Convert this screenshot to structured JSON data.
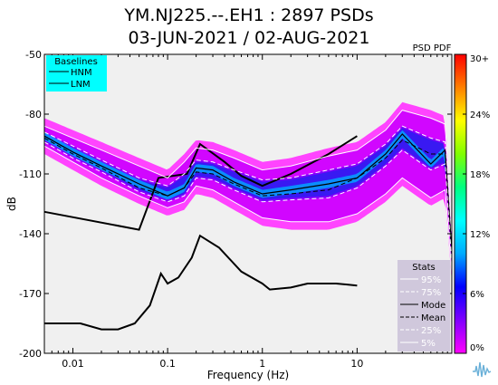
{
  "header": {
    "title_line1": "YM.NJ225.--.EH1 : 2897 PSDs",
    "title_line2": "03-JUN-2021 / 02-AUG-2021"
  },
  "chart_data": {
    "type": "heatmap",
    "xlabel": "Frequency (Hz)",
    "ylabel": "dB",
    "xscale": "log",
    "xlim": [
      0.005,
      100
    ],
    "ylim": [
      -200,
      -50
    ],
    "xticks": [
      0.01,
      0.1,
      1,
      10
    ],
    "xtick_labels": [
      "0.01",
      "0.1",
      "1",
      "10"
    ],
    "yticks": [
      -50,
      -80,
      -110,
      -140,
      -170,
      -200
    ],
    "ytick_labels": [
      "-50",
      "-80",
      "-110",
      "-140",
      "-170",
      "-200"
    ],
    "colorbar": {
      "label": "PSD PDF",
      "range": [
        0,
        30
      ],
      "tick_labels": [
        "30+",
        "24%",
        "18%",
        "12%",
        "6%",
        "0%"
      ],
      "colors": [
        "#ff00ff",
        "#8000ff",
        "#0000ff",
        "#00aaff",
        "#00ffff",
        "#00ff80",
        "#80ff00",
        "#ffff00",
        "#ff8000",
        "#ff0000"
      ]
    },
    "baselines_legend": {
      "title": "Baselines",
      "entries": [
        "HNM",
        "LNM"
      ],
      "background": "#00ffff"
    },
    "stats_legend": {
      "title": "Stats",
      "entries": [
        "95%",
        "75%",
        "Mode",
        "Mean",
        "25%",
        "5%"
      ],
      "background": "#d0c8dc"
    },
    "series": [
      {
        "name": "HNM",
        "x": [
          0.005,
          0.05,
          0.08,
          0.16,
          0.22,
          0.4,
          0.6,
          1.0,
          2.0,
          5.0,
          10.0
        ],
        "y": [
          -129,
          -138,
          -112,
          -110,
          -95,
          -104,
          -111,
          -116,
          -110,
          -100,
          -91
        ]
      },
      {
        "name": "LNM",
        "x": [
          0.005,
          0.012,
          0.02,
          0.03,
          0.045,
          0.065,
          0.085,
          0.1,
          0.13,
          0.18,
          0.22,
          0.35,
          0.6,
          1.0,
          1.2,
          2.0,
          3.0,
          6.0,
          10.0
        ],
        "y": [
          -185,
          -185,
          -188,
          -188,
          -185,
          -176,
          -160,
          -165,
          -162,
          -152,
          -141,
          -147,
          -159,
          -165,
          -168,
          -167,
          -165,
          -165,
          -166
        ]
      },
      {
        "name": "95%",
        "x": [
          0.005,
          0.01,
          0.02,
          0.05,
          0.1,
          0.15,
          0.2,
          0.3,
          0.5,
          1,
          2,
          5,
          10,
          20,
          30,
          60,
          85,
          100
        ],
        "y": [
          -86,
          -92,
          -98,
          -106,
          -112,
          -104,
          -97,
          -98,
          -102,
          -108,
          -106,
          -101,
          -98,
          -88,
          -78,
          -82,
          -85,
          -140
        ]
      },
      {
        "name": "75%",
        "x": [
          0.005,
          0.01,
          0.02,
          0.05,
          0.1,
          0.15,
          0.2,
          0.3,
          0.5,
          1,
          2,
          5,
          10,
          20,
          30,
          60,
          85,
          100
        ],
        "y": [
          -89,
          -96,
          -103,
          -112,
          -116,
          -110,
          -103,
          -104,
          -108,
          -113,
          -112,
          -108,
          -105,
          -95,
          -86,
          -92,
          -94,
          -145
        ]
      },
      {
        "name": "Mode",
        "x": [
          0.005,
          0.01,
          0.02,
          0.05,
          0.1,
          0.15,
          0.2,
          0.3,
          0.5,
          1,
          2,
          5,
          10,
          20,
          30,
          60,
          85,
          100
        ],
        "y": [
          -91,
          -99,
          -106,
          -115,
          -121,
          -117,
          -107,
          -108,
          -114,
          -120,
          -118,
          -115,
          -112,
          -100,
          -90,
          -105,
          -98,
          -150
        ]
      },
      {
        "name": "Mean",
        "x": [
          0.005,
          0.01,
          0.02,
          0.05,
          0.1,
          0.15,
          0.2,
          0.3,
          0.5,
          1,
          2,
          5,
          10,
          20,
          30,
          60,
          85,
          100
        ],
        "y": [
          -92,
          -100,
          -107,
          -117,
          -121,
          -117,
          -109,
          -110,
          -115,
          -121,
          -120,
          -118,
          -112,
          -102,
          -93,
          -100,
          -100,
          -150
        ]
      },
      {
        "name": "25%",
        "x": [
          0.005,
          0.01,
          0.02,
          0.05,
          0.1,
          0.15,
          0.2,
          0.3,
          0.5,
          1,
          2,
          5,
          10,
          20,
          30,
          60,
          85,
          100
        ],
        "y": [
          -94,
          -102,
          -109,
          -119,
          -124,
          -121,
          -112,
          -113,
          -118,
          -124,
          -123,
          -122,
          -117,
          -106,
          -98,
          -108,
          -105,
          -155
        ]
      },
      {
        "name": "5%",
        "x": [
          0.005,
          0.01,
          0.02,
          0.05,
          0.1,
          0.15,
          0.2,
          0.3,
          0.5,
          1,
          2,
          5,
          10,
          20,
          30,
          60,
          85,
          100
        ],
        "y": [
          -96,
          -104,
          -112,
          -121,
          -127,
          -124,
          -116,
          -118,
          -124,
          -132,
          -134,
          -134,
          -130,
          -120,
          -112,
          -122,
          -118,
          -160
        ]
      }
    ]
  }
}
